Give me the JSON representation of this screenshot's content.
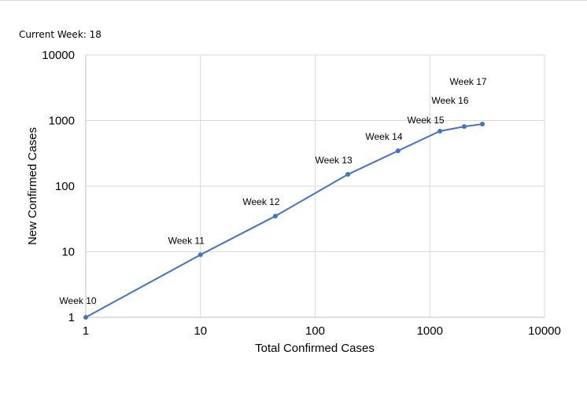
{
  "header": {
    "current_week": "Current Week: 18"
  },
  "chart_data": {
    "type": "line",
    "title": "",
    "xlabel": "Total Confirmed Cases",
    "ylabel": "New Confirmed Cases",
    "xscale": "log",
    "yscale": "log",
    "xlim": [
      1,
      10000
    ],
    "ylim": [
      1,
      10000
    ],
    "xticks": [
      "1",
      "10",
      "100",
      "1000",
      "10000"
    ],
    "yticks": [
      "1",
      "10",
      "100",
      "1000",
      "10000"
    ],
    "grid": true,
    "line_color": "#4472c4",
    "points": [
      {
        "label": "Week 10",
        "x": 1,
        "y": 1
      },
      {
        "label": "Week 11",
        "x": 10,
        "y": 9
      },
      {
        "label": "Week 12",
        "x": 45,
        "y": 35
      },
      {
        "label": "Week 13",
        "x": 193,
        "y": 151
      },
      {
        "label": "Week 14",
        "x": 529,
        "y": 346
      },
      {
        "label": "Week 15",
        "x": 1224,
        "y": 689
      },
      {
        "label": "Week 16",
        "x": 1995,
        "y": 811
      },
      {
        "label": "Week 17",
        "x": 2871,
        "y": 884
      }
    ]
  }
}
